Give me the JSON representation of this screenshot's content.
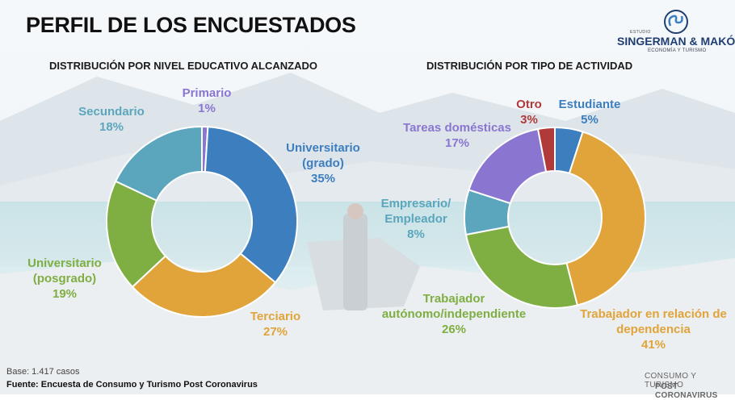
{
  "title": "PERFIL DE LOS ENCUESTADOS",
  "logo": {
    "small": "ESTUDIO",
    "main": "SINGERMAN & MAKÓN",
    "sub": "ECONOMÍA Y TURISMO"
  },
  "base_text": "Base: 1.417 casos",
  "source_text": "Fuente: Encuesta de Consumo y Turismo Post Coronavirus",
  "footer": {
    "line1": "CONSUMO Y TURISMO",
    "line2": "POST CORONAVIRUS"
  },
  "chart_data": [
    {
      "type": "pie",
      "subtype": "donut",
      "title": "DISTRIBUCIÓN POR NIVEL EDUCATIVO ALCANZADO",
      "slices": [
        {
          "label": [
            "Primario"
          ],
          "value_label": "1%",
          "value": 1,
          "color": "#8a75d1"
        },
        {
          "label": [
            "Universitario",
            "(grado)"
          ],
          "value_label": "35%",
          "value": 35,
          "color": "#3d7ebf"
        },
        {
          "label": [
            "Terciario"
          ],
          "value_label": "27%",
          "value": 27,
          "color": "#e0a43a"
        },
        {
          "label": [
            "Universitario",
            "(posgrado)"
          ],
          "value_label": "19%",
          "value": 19,
          "color": "#7fae43"
        },
        {
          "label": [
            "Secundario"
          ],
          "value_label": "18%",
          "value": 18,
          "color": "#5ba6bd"
        }
      ]
    },
    {
      "type": "pie",
      "subtype": "donut",
      "title": "DISTRIBUCIÓN POR TIPO DE ACTIVIDAD",
      "slices": [
        {
          "label": [
            "Estudiante"
          ],
          "value_label": "5%",
          "value": 5,
          "color": "#3d7ebf"
        },
        {
          "label": [
            "Trabajador en relación de",
            "dependencia"
          ],
          "value_label": "41%",
          "value": 41,
          "color": "#e0a43a"
        },
        {
          "label": [
            "Trabajador",
            "autónomo/independiente"
          ],
          "value_label": "26%",
          "value": 26,
          "color": "#7fae43"
        },
        {
          "label": [
            "Empresario/",
            "Empleador"
          ],
          "value_label": "8%",
          "value": 8,
          "color": "#5ba6bd"
        },
        {
          "label": [
            "Tareas domésticas"
          ],
          "value_label": "17%",
          "value": 17,
          "color": "#8a75d1"
        },
        {
          "label": [
            "Otro"
          ],
          "value_label": "3%",
          "value": 3,
          "color": "#b03a3a"
        }
      ]
    }
  ]
}
